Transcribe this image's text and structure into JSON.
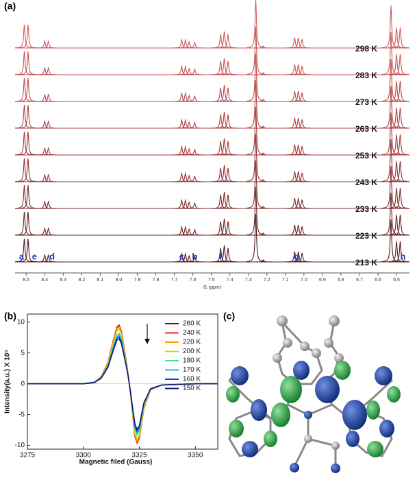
{
  "chart_data": [
    {
      "type": "spectrum",
      "label": "(a)",
      "xlabel": "f1 (ppm)",
      "xlim": [
        8.56,
        6.43
      ],
      "xticks": [
        8.5,
        8.4,
        8.3,
        8.2,
        8.1,
        {
          "value": 8,
          "label": "8.0"
        },
        7.9,
        7.8,
        7.7,
        7.6,
        7.5,
        7.4,
        7.3,
        7.2,
        7.1,
        {
          "value": 7,
          "label": "7.0"
        },
        6.9,
        6.8,
        6.7,
        6.6,
        6.5
      ],
      "peaks": {
        "x": [
          8.51,
          8.49,
          8.4,
          8.38,
          7.66,
          7.64,
          7.62,
          7.59,
          7.45,
          7.43,
          7.41,
          7.26,
          7.22,
          7.05,
          7.03,
          7.01,
          6.53,
          6.5,
          6.48
        ],
        "heights": [
          34,
          34,
          10,
          10,
          12,
          12,
          9,
          8,
          20,
          24,
          20,
          70,
          3,
          15,
          15,
          13,
          62,
          30,
          30
        ]
      },
      "series": [
        {
          "name": "298 K",
          "color": "#d35a5a"
        },
        {
          "name": "283 K",
          "color": "#c85252"
        },
        {
          "name": "273 K",
          "color": "#bd4a4a"
        },
        {
          "name": "263 K",
          "color": "#b04242"
        },
        {
          "name": "253 K",
          "color": "#a23a3a"
        },
        {
          "name": "243 K",
          "color": "#923232"
        },
        {
          "name": "233 K",
          "color": "#802a2a"
        },
        {
          "name": "223 K",
          "color": "#6c2121"
        },
        {
          "name": "213 K",
          "color": "#561818"
        }
      ],
      "annotations": [
        {
          "text": "a",
          "x": 8.525
        },
        {
          "text": "e",
          "x": 8.455
        },
        {
          "text": "d",
          "x": 8.36
        },
        {
          "text": "c",
          "x": 7.66
        },
        {
          "text": "b",
          "x": 7.59
        },
        {
          "text": "f",
          "x": 7.45
        },
        {
          "text": "g",
          "x": 7.04
        },
        {
          "text": "h",
          "x": 6.465
        }
      ]
    },
    {
      "type": "line",
      "label": "(b)",
      "xlabel": "Magnetic filed (Gauss)",
      "ylabel": "Intensity(a.u.) X 10⁵",
      "xlim": [
        3275,
        3360
      ],
      "ylim": [
        -10.6,
        11.3
      ],
      "xticks": [
        3275,
        3300,
        3325,
        3350
      ],
      "yticks": [
        -10,
        -5,
        0,
        5,
        10
      ],
      "legend": "upper right",
      "x": [
        3275,
        3300,
        3305,
        3308,
        3311,
        3313,
        3315,
        3316,
        3317,
        3319,
        3320,
        3321,
        3322,
        3323,
        3324,
        3325,
        3327,
        3330,
        3335,
        3350,
        3360
      ],
      "series": [
        {
          "name": "260 K",
          "color": "#6b0f1a",
          "values": [
            0,
            0,
            0.3,
            1.2,
            3.5,
            6.5,
            9.2,
            9.5,
            8.5,
            4,
            1.5,
            -1.5,
            -5,
            -8.5,
            -9.6,
            -8.8,
            -4,
            -1,
            -0.2,
            0,
            0
          ]
        },
        {
          "name": "240 K",
          "color": "#ff2020",
          "values": [
            0,
            0,
            0.3,
            1.2,
            3.5,
            6.4,
            9.1,
            9.4,
            8.4,
            4,
            1.5,
            -1.5,
            -5,
            -8.4,
            -9.5,
            -8.7,
            -4,
            -1,
            -0.2,
            0,
            0
          ]
        },
        {
          "name": "220 K",
          "color": "#ff9900",
          "values": [
            0,
            0,
            0.3,
            1.2,
            3.4,
            6.3,
            8.9,
            9.2,
            8.2,
            3.9,
            1.5,
            -1.5,
            -4.9,
            -8.2,
            -9.3,
            -8.5,
            -3.9,
            -1,
            -0.2,
            0,
            0
          ]
        },
        {
          "name": "200 K",
          "color": "#c8d800",
          "values": [
            0,
            0,
            0.3,
            1.1,
            3.3,
            6.1,
            8.6,
            8.9,
            8,
            3.8,
            1.4,
            -1.4,
            -4.7,
            -8,
            -9,
            -8.3,
            -3.8,
            -0.9,
            -0.2,
            0,
            0
          ]
        },
        {
          "name": "180 K",
          "color": "#40e0a0",
          "values": [
            0,
            0,
            0.3,
            1,
            3,
            5.6,
            7.9,
            8.2,
            7.3,
            3.4,
            1.3,
            -1.3,
            -4.3,
            -7.3,
            -8.3,
            -7.6,
            -3.4,
            -0.9,
            -0.2,
            0,
            0
          ]
        },
        {
          "name": "170 K",
          "color": "#20b8e0",
          "values": [
            0,
            0,
            0.2,
            1,
            2.9,
            5.4,
            7.6,
            7.9,
            7.1,
            3.3,
            1.2,
            -1.2,
            -4.2,
            -7.1,
            -8,
            -7.3,
            -3.3,
            -0.8,
            -0.2,
            0,
            0
          ]
        },
        {
          "name": "160 K",
          "color": "#2040e0",
          "values": [
            0,
            0,
            0.2,
            1,
            2.8,
            5.2,
            7.4,
            7.6,
            6.8,
            3.2,
            1.2,
            -1.2,
            -4,
            -6.8,
            -7.7,
            -7,
            -3.2,
            -0.8,
            -0.2,
            0,
            0
          ]
        },
        {
          "name": "150 K",
          "color": "#1a1a6e",
          "values": [
            0,
            0,
            0.2,
            0.9,
            2.7,
            5,
            7.1,
            7.3,
            6.5,
            3.1,
            1.2,
            -1.2,
            -3.9,
            -6.5,
            -7.4,
            -6.8,
            -3.1,
            -0.8,
            -0.2,
            0,
            0
          ]
        }
      ]
    }
  ],
  "panel_c": {
    "label": "(c)"
  }
}
